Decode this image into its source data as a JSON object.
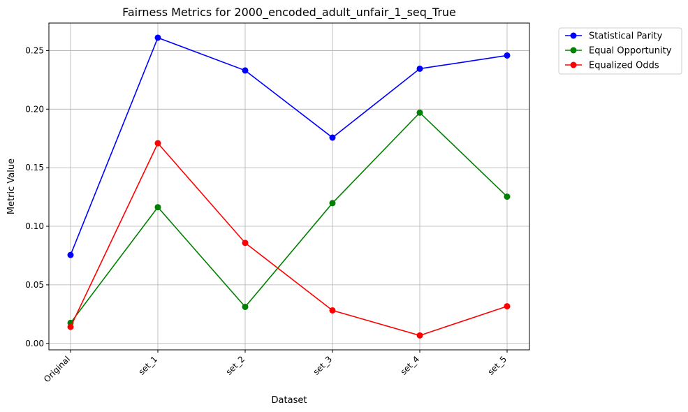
{
  "chart_data": {
    "type": "line",
    "title": "Fairness Metrics for 2000_encoded_adult_unfair_1_seq_True",
    "xlabel": "Dataset",
    "ylabel": "Metric Value",
    "categories": [
      "Original",
      "set_1",
      "set_2",
      "set_3",
      "set_4",
      "set_5"
    ],
    "ylim": [
      -0.0055,
      0.2735
    ],
    "yticks": [
      0.0,
      0.05,
      0.1,
      0.15,
      0.2,
      0.25
    ],
    "ytick_labels": [
      "0.00",
      "0.05",
      "0.10",
      "0.15",
      "0.20",
      "0.25"
    ],
    "grid": true,
    "legend_position": "outside-top-right",
    "series": [
      {
        "name": "Statistical Parity",
        "color": "#0000ff",
        "values": [
          0.0755,
          0.261,
          0.233,
          0.1757,
          0.2345,
          0.2458
        ]
      },
      {
        "name": "Equal Opportunity",
        "color": "#008000",
        "values": [
          0.0175,
          0.1163,
          0.0312,
          0.1198,
          0.197,
          0.1253
        ]
      },
      {
        "name": "Equalized Odds",
        "color": "#ff0000",
        "values": [
          0.0141,
          0.1709,
          0.0858,
          0.0282,
          0.0068,
          0.0317
        ]
      }
    ]
  }
}
